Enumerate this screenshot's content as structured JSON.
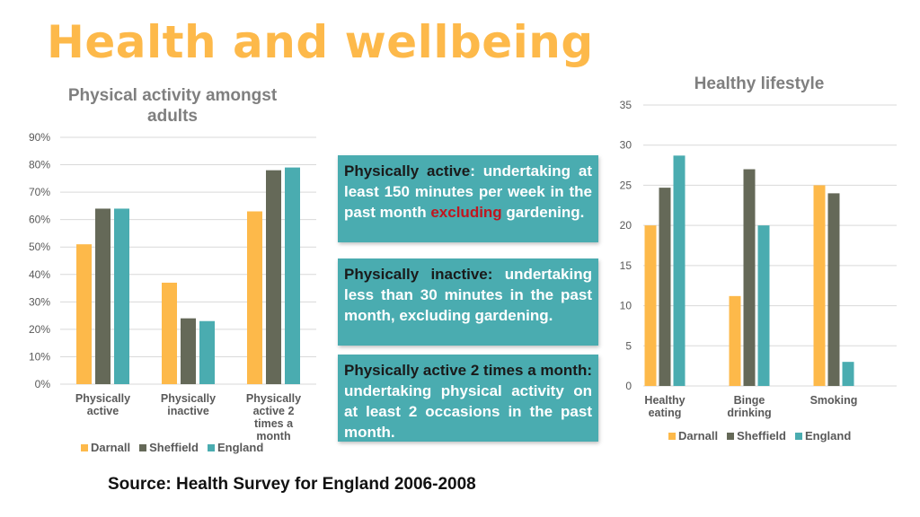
{
  "page": {
    "title": "Health and wellbeing",
    "source": "Source:  Health Survey for England 2006-2008"
  },
  "colors": {
    "Darnall": "#fdb94a",
    "Sheffield": "#656958",
    "England": "#4aacb0",
    "title": "#fdb94a",
    "box": "#4aacb0",
    "highlight": "#c0161f"
  },
  "chart_data": [
    {
      "type": "bar",
      "title": "Physical activity amongst adults",
      "categories": [
        "Physically active",
        "Physically inactive",
        "Physically active 2 times a month"
      ],
      "series": [
        {
          "name": "Darnall",
          "values": [
            51,
            37,
            63
          ]
        },
        {
          "name": "Sheffield",
          "values": [
            64,
            24,
            78
          ]
        },
        {
          "name": "England",
          "values": [
            64,
            23,
            79
          ]
        }
      ],
      "ylim": [
        0,
        90
      ],
      "yticks": [
        0,
        10,
        20,
        30,
        40,
        50,
        60,
        70,
        80,
        90
      ],
      "yunit": "%",
      "legend": "bottom",
      "grid": true
    },
    {
      "type": "bar",
      "title": "Healthy lifestyle",
      "categories": [
        "Healthy eating",
        "Binge drinking",
        "Smoking"
      ],
      "series": [
        {
          "name": "Darnall",
          "values": [
            20,
            11.2,
            25
          ]
        },
        {
          "name": "Sheffield",
          "values": [
            24.7,
            27,
            24
          ]
        },
        {
          "name": "England",
          "values": [
            28.7,
            20,
            3
          ]
        }
      ],
      "ylim": [
        0,
        35
      ],
      "yticks": [
        0,
        5,
        10,
        15,
        20,
        25,
        30,
        35
      ],
      "yunit": "",
      "legend": "bottom",
      "grid": true
    }
  ],
  "definitions": [
    {
      "term": "Physically active",
      "sep": ":",
      "pre": " undertaking at least 150 minutes per week in the past month ",
      "emph": "excluding",
      "post": " gardening."
    },
    {
      "term": "Physically inactive:",
      "text": " undertaking less than 30 minutes in the past month, excluding gardening."
    },
    {
      "term": "Physically active 2 times a month:",
      "text": " undertaking physical activity on at least 2 occasions in the past month."
    }
  ]
}
